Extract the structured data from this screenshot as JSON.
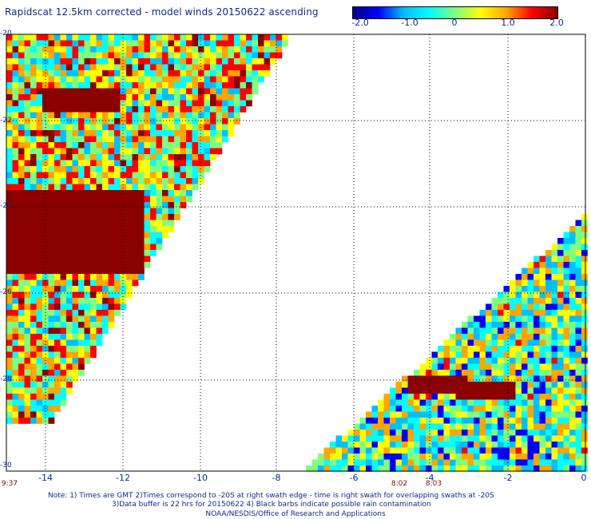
{
  "title": "Rapidscat 12.5km corrected - model winds 20150622 ascending",
  "colorbar": {
    "ticks": [
      "-2.0",
      "-1.0",
      "0",
      "1.0",
      "2.0"
    ],
    "range": [
      -2.0,
      2.0
    ],
    "colors": [
      "#00008b",
      "#0000ff",
      "#00bfff",
      "#00ffff",
      "#7fff7f",
      "#ffff00",
      "#ffa500",
      "#ff0000",
      "#8b0000"
    ]
  },
  "axes": {
    "x_labels": [
      "-14",
      "-12",
      "-10",
      "-8",
      "-6",
      "-4",
      "-2",
      "0"
    ],
    "x_range": [
      -15,
      0
    ],
    "y_labels": [
      "-20",
      "-22",
      "-24",
      "-26",
      "-28",
      "-30"
    ],
    "y_range": [
      -30,
      -20
    ],
    "grid": "dotted"
  },
  "time_labels": [
    "9:37",
    "8:02",
    "8:03"
  ],
  "notes": [
    "Note: 1) Times are GMT 2)Times correspond to -20S at right swath edge - time is right swath for overlapping swaths at -20S",
    "3)Data buffer is 22 hrs for 20150622 4) Black barbs indicate possible rain contamination",
    "NOAA/NESDIS/Office of Research and Applications"
  ]
}
